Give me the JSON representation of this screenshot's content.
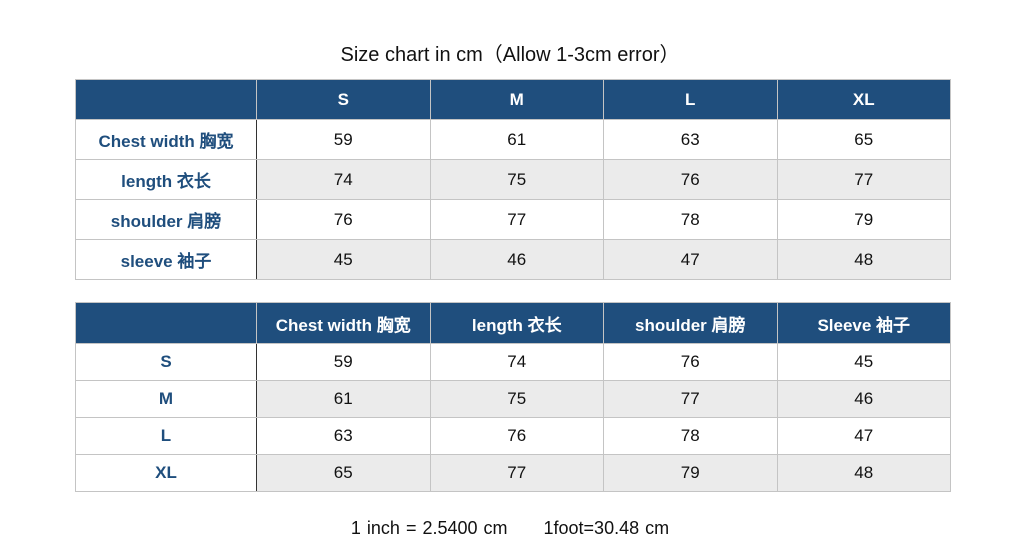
{
  "title": "Size chart in cm（Allow 1-3cm error）",
  "colors": {
    "header": "#1f4e7d",
    "row_alt": "#ebebeb",
    "label_text": "#1f4e7d"
  },
  "table1": {
    "headers": [
      "",
      "S",
      "M",
      "L",
      "XL"
    ],
    "rows": [
      {
        "label": "Chest width 胸宽",
        "values": [
          "59",
          "61",
          "63",
          "65"
        ]
      },
      {
        "label": "length 衣长",
        "values": [
          "74",
          "75",
          "76",
          "77"
        ]
      },
      {
        "label": "shoulder 肩膀",
        "values": [
          "76",
          "77",
          "78",
          "79"
        ]
      },
      {
        "label": "sleeve 袖子",
        "values": [
          "45",
          "46",
          "47",
          "48"
        ]
      }
    ]
  },
  "table2": {
    "headers": [
      "",
      "Chest width 胸宽",
      "length 衣长",
      "shoulder 肩膀",
      "Sleeve 袖子"
    ],
    "rows": [
      {
        "label": "S",
        "values": [
          "59",
          "74",
          "76",
          "45"
        ]
      },
      {
        "label": "M",
        "values": [
          "61",
          "75",
          "77",
          "46"
        ]
      },
      {
        "label": "L",
        "values": [
          "63",
          "76",
          "78",
          "47"
        ]
      },
      {
        "label": "XL",
        "values": [
          "65",
          "77",
          "79",
          "48"
        ]
      }
    ]
  },
  "footer": "1 inch = 2.5400 cm      1foot=30.48 cm"
}
